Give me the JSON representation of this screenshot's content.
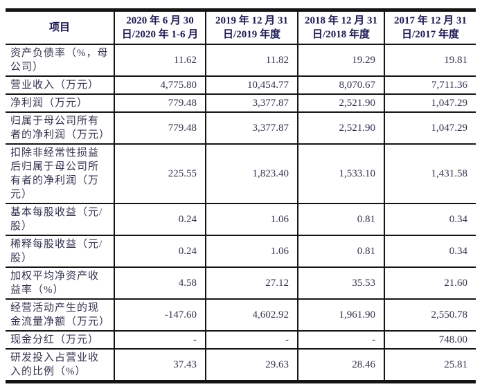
{
  "colors": {
    "text": "#32324f",
    "header_text": "#1a1a52",
    "border": "#141414",
    "page_bg": "#ffffff"
  },
  "table": {
    "columns": [
      "项目",
      "2020 年 6 月 30\n日/2020 年 1-6 月",
      "2019 年 12 月 31\n日/2019 年度",
      "2018 年 12 月 31\n日/2018 年度",
      "2017 年 12 月 31\n日/2017 年度"
    ],
    "rows": [
      {
        "label": "资产负债率（%，母\n公司）",
        "values": [
          "11.62",
          "11.82",
          "19.29",
          "19.81"
        ]
      },
      {
        "label": "营业收入（万元）",
        "values": [
          "4,775.80",
          "10,454.77",
          "8,070.67",
          "7,711.36"
        ]
      },
      {
        "label": "净利润（万元）",
        "values": [
          "779.48",
          "3,377.87",
          "2,521.90",
          "1,047.29"
        ]
      },
      {
        "label": "归属于母公司所有\n者的净利润（万元）",
        "values": [
          "779.48",
          "3,377.87",
          "2,521.90",
          "1,047.29"
        ]
      },
      {
        "label": "扣除非经常性损益\n后归属于母公司所\n有者的净利润（万\n元）",
        "values": [
          "225.55",
          "1,823.40",
          "1,533.10",
          "1,431.58"
        ]
      },
      {
        "label": "基本每股收益（元/\n股）",
        "values": [
          "0.24",
          "1.06",
          "0.81",
          "0.34"
        ]
      },
      {
        "label": "稀释每股收益（元/\n股）",
        "values": [
          "0.24",
          "1.06",
          "0.81",
          "0.34"
        ]
      },
      {
        "label": "加权平均净资产收\n益率（%）",
        "values": [
          "4.58",
          "27.12",
          "35.53",
          "21.60"
        ]
      },
      {
        "label": "经营活动产生的现\n金流量净额（万元）",
        "values": [
          "-147.60",
          "4,602.92",
          "1,961.90",
          "2,550.78"
        ]
      },
      {
        "label": "现金分红（万元）",
        "values": [
          "-",
          "-",
          "-",
          "748.00"
        ]
      },
      {
        "label": "研发投入占营业收\n入的比例（%）",
        "values": [
          "37.43",
          "29.63",
          "28.46",
          "25.81"
        ]
      }
    ]
  }
}
